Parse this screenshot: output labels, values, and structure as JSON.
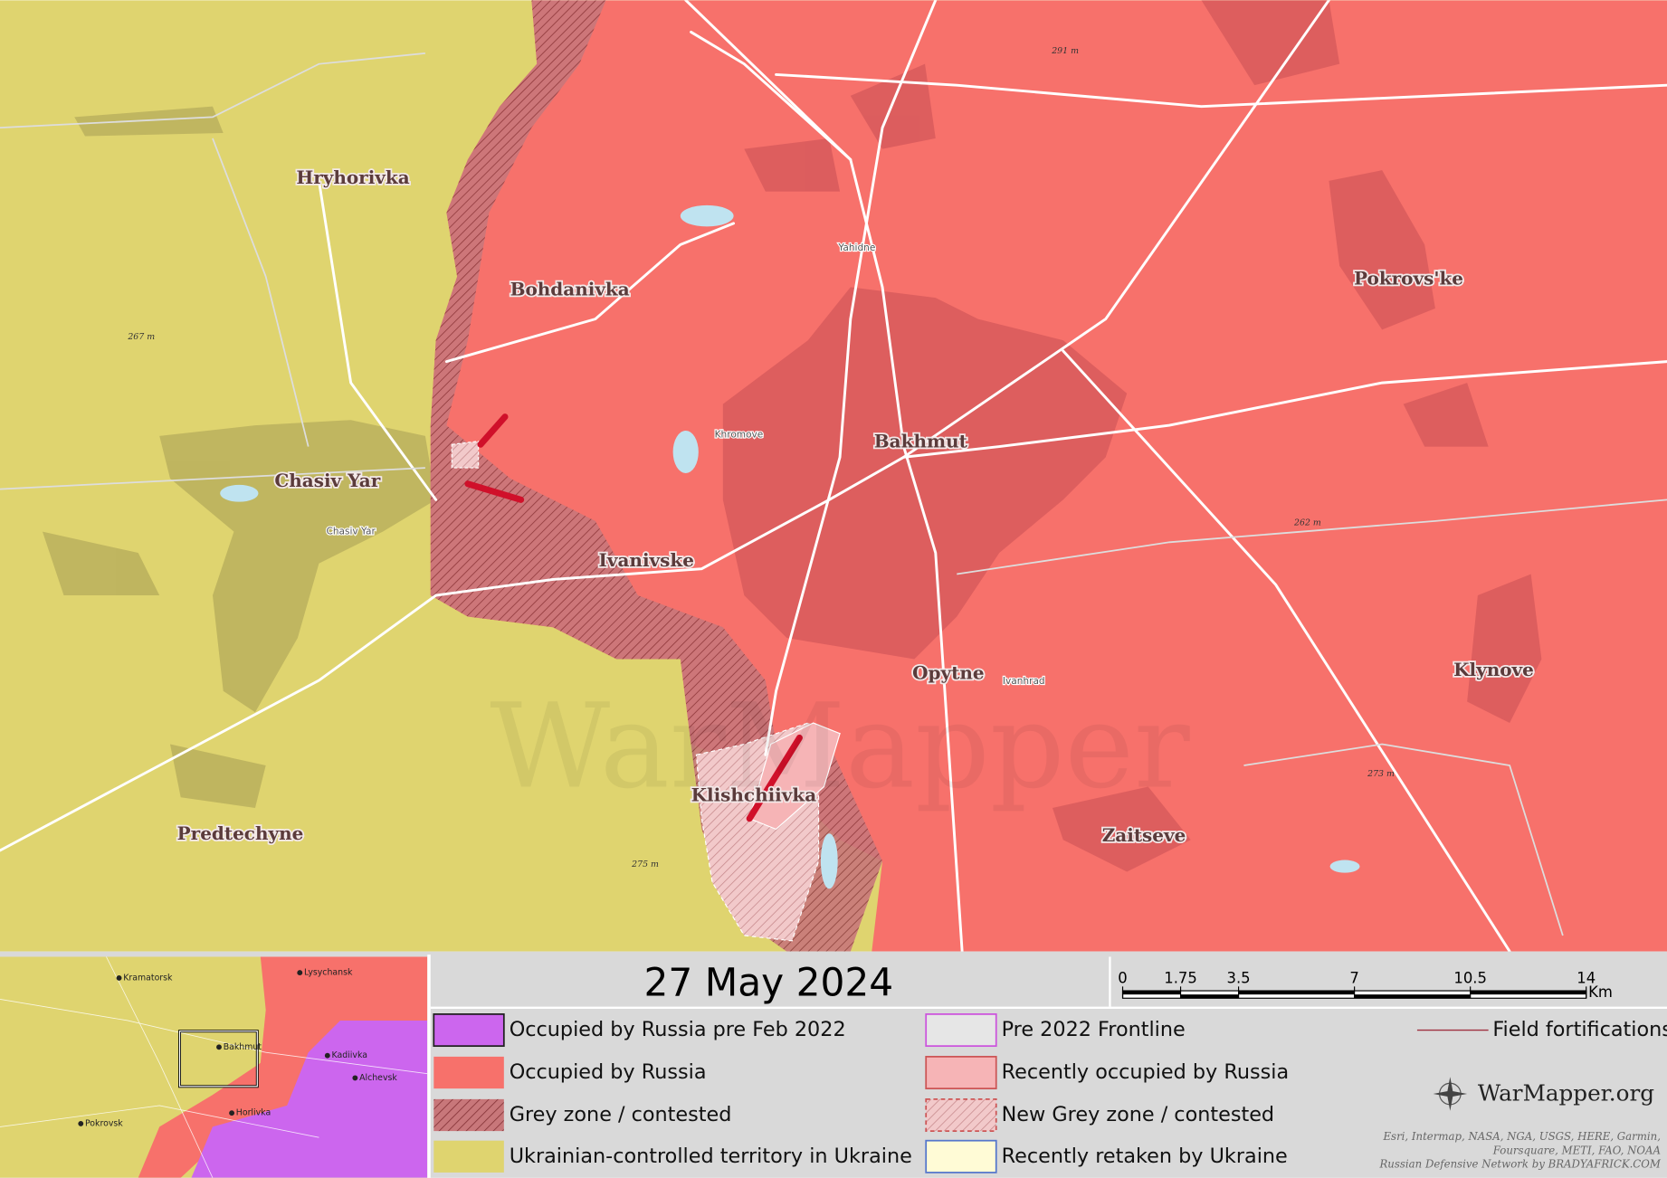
{
  "map": {
    "places": [
      "Hryhorivka",
      "Bohdanivka",
      "Chasiv Yar",
      "Ivanivske",
      "Bakhmut",
      "Opytne",
      "Klishchiivka",
      "Predtechyne",
      "Zaitseve",
      "Pokrovs'ke",
      "Klynove"
    ],
    "minor_places": [
      "Chasiv Yar",
      "Yahidne",
      "Khromove",
      "Ivanhrad"
    ],
    "elevations": [
      "291 m",
      "267 m",
      "262 m",
      "273 m",
      "275 m"
    ],
    "watermark": "WarMapper"
  },
  "inset": {
    "places": [
      "Lysychansk",
      "Kramatorsk",
      "Bakhmut",
      "Kadiivka",
      "Alchevsk",
      "Pokrovsk",
      "Horlivka"
    ]
  },
  "date": "27 May 2024",
  "scale_bar": {
    "ticks": [
      0,
      1.75,
      3.5,
      7,
      10.5,
      14
    ],
    "unit": "Km"
  },
  "legend": [
    {
      "label": "Occupied by Russia pre Feb 2022"
    },
    {
      "label": "Occupied by Russia"
    },
    {
      "label": "Grey zone / contested"
    },
    {
      "label": "Ukrainian-controlled territory in Ukraine"
    },
    {
      "label": "Pre 2022 Frontline"
    },
    {
      "label": "Recently occupied by Russia"
    },
    {
      "label": "New Grey zone / contested"
    },
    {
      "label": "Recently retaken by Ukraine"
    },
    {
      "label": "Field fortifications"
    }
  ],
  "logo": "WarMapper.org",
  "attribution": [
    "Esri, Intermap, NASA, NGA, USGS, HERE, Garmin,",
    "Foursquare, METI, FAO, NOAA",
    "Russian Defensive Network by BRADYAFRICK.COM"
  ]
}
